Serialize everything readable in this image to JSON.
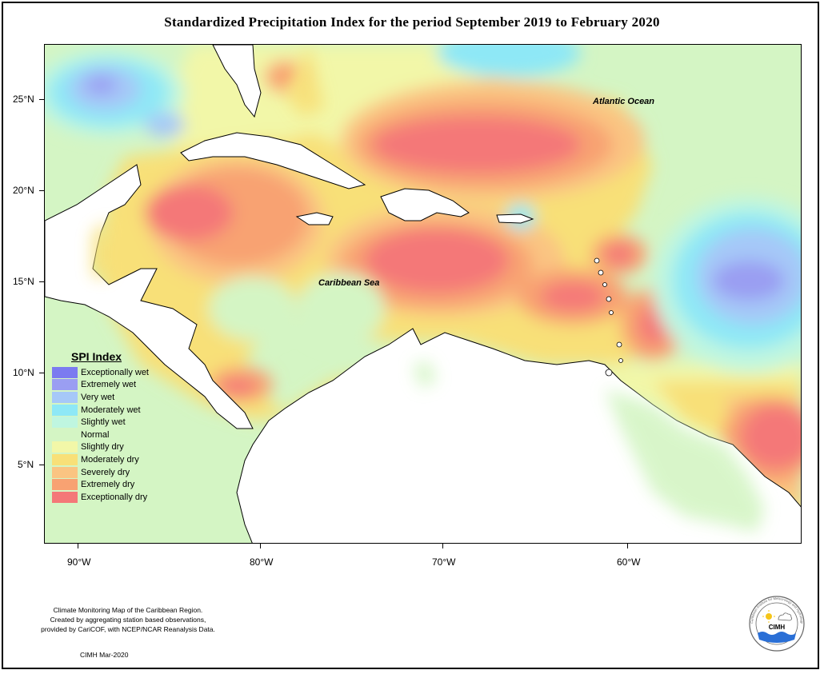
{
  "title": "Standardized Precipitation Index for the period September 2019 to February 2020",
  "axes": {
    "y_ticks": [
      "25°N",
      "20°N",
      "15°N",
      "10°N",
      "5°N"
    ],
    "x_ticks": [
      "90°W",
      "80°W",
      "70°W",
      "60°W"
    ]
  },
  "map_labels": {
    "atlantic": "Atlantic Ocean",
    "caribbean": "Caribbean Sea"
  },
  "legend": {
    "title": "SPI Index",
    "items": [
      {
        "label": "Exceptionally wet",
        "color": "#7b7bf0"
      },
      {
        "label": "Extremely wet",
        "color": "#9a9ef2"
      },
      {
        "label": "Very wet",
        "color": "#a6c8f8"
      },
      {
        "label": "Moderately wet",
        "color": "#8ee8f6"
      },
      {
        "label": "Slightly wet",
        "color": "#bff6e0"
      },
      {
        "label": "Normal",
        "color": "#d4f5c4"
      },
      {
        "label": "Slightly dry",
        "color": "#f2f7a8"
      },
      {
        "label": "Moderately dry",
        "color": "#f8e078"
      },
      {
        "label": "Severely dry",
        "color": "#fac482"
      },
      {
        "label": "Extremely dry",
        "color": "#f8a272"
      },
      {
        "label": "Exceptionally dry",
        "color": "#f47878"
      }
    ]
  },
  "footer": {
    "line1": "Climate Monitoring Map of the Caribbean Region.",
    "line2": "Created by aggregating station based observations,",
    "line3": "provided by CariCOF, with NCEP/NCAR Reanalysis Data.",
    "credit": "CIMH Mar-2020"
  },
  "logo": {
    "text": "CIMH",
    "ring_text": "Caribbean Institute for Meteorology and Hydrology"
  }
}
